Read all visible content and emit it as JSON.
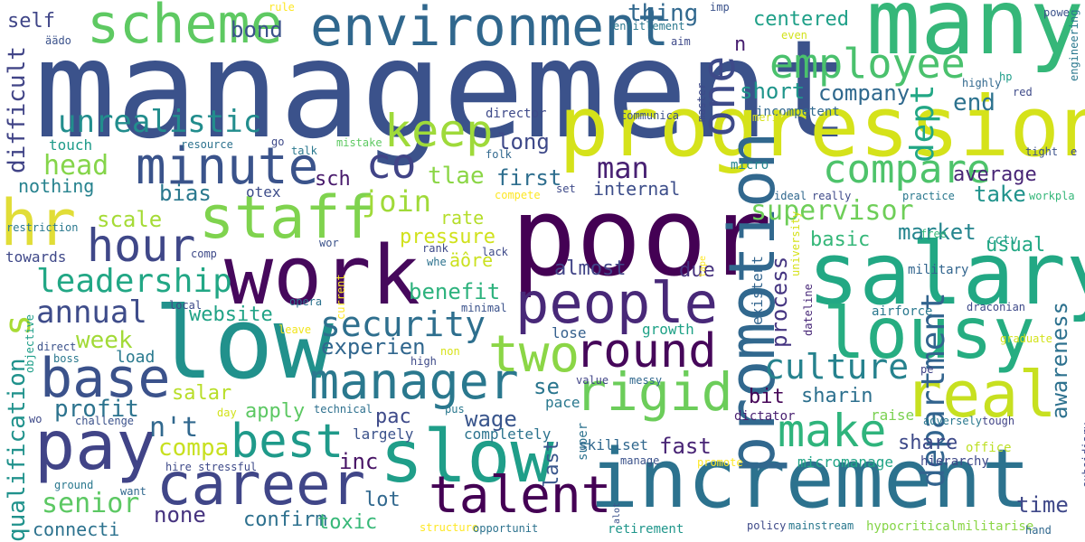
{
  "words": [
    {
      "text": "management",
      "color": "#3b528b",
      "vertical": false
    },
    {
      "text": "poor",
      "color": "#440154",
      "vertical": false
    },
    {
      "text": "many",
      "color": "#35b779",
      "vertical": false
    },
    {
      "text": "progression",
      "color": "#d5e21a",
      "vertical": false
    },
    {
      "text": "increment",
      "color": "#2c728e",
      "vertical": false
    },
    {
      "text": "low",
      "color": "#21918c",
      "vertical": false
    },
    {
      "text": "salary",
      "color": "#22a884",
      "vertical": false
    },
    {
      "text": "work",
      "color": "#46085c",
      "vertical": false
    },
    {
      "text": "promotion",
      "color": "#31688e",
      "vertical": true
    },
    {
      "text": "pay",
      "color": "#414487",
      "vertical": false
    },
    {
      "text": "slow",
      "color": "#1f9e89",
      "vertical": false
    },
    {
      "text": "lousy",
      "color": "#26ad81",
      "vertical": false
    },
    {
      "text": "scheme",
      "color": "#5ec962",
      "vertical": false
    },
    {
      "text": "environment",
      "color": "#30678d",
      "vertical": false
    },
    {
      "text": "career",
      "color": "#404688",
      "vertical": false
    },
    {
      "text": "people",
      "color": "#482878",
      "vertical": false
    },
    {
      "text": "real",
      "color": "#c7e020",
      "vertical": false
    },
    {
      "text": "hr",
      "color": "#e1dd37",
      "vertical": false
    },
    {
      "text": "staff",
      "color": "#7fd34e",
      "vertical": false
    },
    {
      "text": "one",
      "color": "#3e4a89",
      "vertical": true
    },
    {
      "text": "talent",
      "color": "#440154",
      "vertical": false
    },
    {
      "text": "base",
      "color": "#3b528b",
      "vertical": false
    },
    {
      "text": "rigid",
      "color": "#6ccd5a",
      "vertical": false
    },
    {
      "text": "manager",
      "color": "#2a788e",
      "vertical": false
    },
    {
      "text": "best",
      "color": "#1f9a8a",
      "vertical": false
    },
    {
      "text": "round",
      "color": "#46075a",
      "vertical": false
    },
    {
      "text": "two",
      "color": "#8bd646",
      "vertical": false
    },
    {
      "text": "minute",
      "color": "#3a538b",
      "vertical": false
    },
    {
      "text": "make",
      "color": "#2fb47c",
      "vertical": false
    },
    {
      "text": "employee",
      "color": "#4ac16d",
      "vertical": false
    },
    {
      "text": "keep",
      "color": "#9fda3a",
      "vertical": false
    },
    {
      "text": "compare",
      "color": "#4ec36b",
      "vertical": false
    },
    {
      "text": "hour",
      "color": "#3f4788",
      "vertical": false
    },
    {
      "text": "s",
      "color": "#a8db34",
      "vertical": true
    },
    {
      "text": "co",
      "color": "#414487",
      "vertical": false
    },
    {
      "text": "culture",
      "color": "#26828e",
      "vertical": false
    },
    {
      "text": "security",
      "color": "#2e6f8e",
      "vertical": false
    },
    {
      "text": "dept",
      "color": "#22a785",
      "vertical": true
    },
    {
      "text": "unrealistic",
      "color": "#228d8d",
      "vertical": false
    },
    {
      "text": "leadership",
      "color": "#22a785",
      "vertical": false
    },
    {
      "text": "annual",
      "color": "#3e4c8a",
      "vertical": false
    },
    {
      "text": "department",
      "color": "#32648e",
      "vertical": true
    },
    {
      "text": "difficult",
      "color": "#414487",
      "vertical": true
    },
    {
      "text": "qualification",
      "color": "#20928c",
      "vertical": true
    },
    {
      "text": "supervisor",
      "color": "#6ece58",
      "vertical": false
    },
    {
      "text": "process",
      "color": "#453581",
      "vertical": true
    },
    {
      "text": "awareness",
      "color": "#2d718e",
      "vertical": true
    },
    {
      "text": "head",
      "color": "#85d54a",
      "vertical": false
    },
    {
      "text": "senior",
      "color": "#5cc863",
      "vertical": false
    },
    {
      "text": "n't",
      "color": "#31688e",
      "vertical": false
    },
    {
      "text": "profit",
      "color": "#2c738e",
      "vertical": false
    },
    {
      "text": "experien",
      "color": "#31678e",
      "vertical": false
    },
    {
      "text": "join",
      "color": "#a0da39",
      "vertical": false
    },
    {
      "text": "company",
      "color": "#30698e",
      "vertical": false
    },
    {
      "text": "short",
      "color": "#1f958b",
      "vertical": false
    },
    {
      "text": "end",
      "color": "#2c728e",
      "vertical": false
    },
    {
      "text": "bond",
      "color": "#3b528b",
      "vertical": false
    },
    {
      "text": "self",
      "color": "#404688",
      "vertical": false
    },
    {
      "text": "thing",
      "color": "#31688e",
      "vertical": false
    },
    {
      "text": "centered",
      "color": "#1fa088",
      "vertical": false
    },
    {
      "text": "n",
      "color": "#481f70",
      "vertical": false
    },
    {
      "text": "man",
      "color": "#482173",
      "vertical": false
    },
    {
      "text": "long",
      "color": "#3e4989",
      "vertical": false
    },
    {
      "text": "first",
      "color": "#2e6e8e",
      "vertical": false
    },
    {
      "text": "internal",
      "color": "#3d4e8a",
      "vertical": false
    },
    {
      "text": "average",
      "color": "#482576",
      "vertical": false
    },
    {
      "text": "take",
      "color": "#20938c",
      "vertical": false
    },
    {
      "text": "market",
      "color": "#25858e",
      "vertical": false
    },
    {
      "text": "basic",
      "color": "#35b779",
      "vertical": false
    },
    {
      "text": "usual",
      "color": "#22a884",
      "vertical": false
    },
    {
      "text": "sch",
      "color": "#481a6c",
      "vertical": false
    },
    {
      "text": "tlae",
      "color": "#8bd646",
      "vertical": false
    },
    {
      "text": "rate",
      "color": "#b5de2b",
      "vertical": false
    },
    {
      "text": "pressure",
      "color": "#d0e11c",
      "vertical": false
    },
    {
      "text": "äôre",
      "color": "#cae11f",
      "vertical": false
    },
    {
      "text": "almost",
      "color": "#414487",
      "vertical": false
    },
    {
      "text": "due",
      "color": "#46327e",
      "vertical": false
    },
    {
      "text": "benefit",
      "color": "#2db27d",
      "vertical": false
    },
    {
      "text": "scale",
      "color": "#a5db36",
      "vertical": false
    },
    {
      "text": "nothing",
      "color": "#26828e",
      "vertical": false
    },
    {
      "text": "bias",
      "color": "#2a788e",
      "vertical": false
    },
    {
      "text": "website",
      "color": "#20a386",
      "vertical": false
    },
    {
      "text": "week",
      "color": "#a2da37",
      "vertical": false
    },
    {
      "text": "load",
      "color": "#29798e",
      "vertical": false
    },
    {
      "text": "salar",
      "color": "#b8de29",
      "vertical": false
    },
    {
      "text": "apply",
      "color": "#5cc863",
      "vertical": false
    },
    {
      "text": "pac",
      "color": "#3e4a89",
      "vertical": false
    },
    {
      "text": "wage",
      "color": "#39558c",
      "vertical": false
    },
    {
      "text": "se",
      "color": "#2a768e",
      "vertical": false
    },
    {
      "text": "inc",
      "color": "#471365",
      "vertical": false
    },
    {
      "text": "fast",
      "color": "#482475",
      "vertical": false
    },
    {
      "text": "sharin",
      "color": "#2d708e",
      "vertical": false
    },
    {
      "text": "share",
      "color": "#3e4a89",
      "vertical": false
    },
    {
      "text": "bit",
      "color": "#450457",
      "vertical": false
    },
    {
      "text": "time",
      "color": "#3f4889",
      "vertical": false
    },
    {
      "text": "compa",
      "color": "#c8e020",
      "vertical": false
    },
    {
      "text": "lot",
      "color": "#31688e",
      "vertical": false
    },
    {
      "text": "none",
      "color": "#46337f",
      "vertical": false
    },
    {
      "text": "confirm",
      "color": "#2d708e",
      "vertical": false
    },
    {
      "text": "toxic",
      "color": "#37b878",
      "vertical": false
    },
    {
      "text": "last",
      "color": "#39568c",
      "vertical": true
    },
    {
      "text": "existent",
      "color": "#32658e",
      "vertical": true
    },
    {
      "text": "touch",
      "color": "#1e9b8a",
      "vertical": false
    },
    {
      "text": "towards",
      "color": "#3f4889",
      "vertical": false
    },
    {
      "text": "largely",
      "color": "#3b528b",
      "vertical": false
    },
    {
      "text": "completely",
      "color": "#2c738e",
      "vertical": false
    },
    {
      "text": "lose",
      "color": "#35608d",
      "vertical": false
    },
    {
      "text": "growth",
      "color": "#1fa287",
      "vertical": false
    },
    {
      "text": "director",
      "color": "#3e4a89",
      "vertical": false
    },
    {
      "text": "incompetent",
      "color": "#31688e",
      "vertical": false
    },
    {
      "text": "micro",
      "color": "#25858e",
      "vertical": false
    },
    {
      "text": "otex",
      "color": "#3d4d8a",
      "vertical": false
    },
    {
      "text": "airforce",
      "color": "#2a788e",
      "vertical": false
    },
    {
      "text": "military",
      "color": "#32658e",
      "vertical": false
    },
    {
      "text": "cctv",
      "color": "#1f9e89",
      "vertical": false
    },
    {
      "text": "raise",
      "color": "#7ad151",
      "vertical": false
    },
    {
      "text": "dictator",
      "color": "#481f70",
      "vertical": false
    },
    {
      "text": "pace",
      "color": "#2a788e",
      "vertical": false
    },
    {
      "text": "super",
      "color": "#2c728e",
      "vertical": true
    },
    {
      "text": "skillset",
      "color": "#31688e",
      "vertical": false
    },
    {
      "text": "micromanage",
      "color": "#20a486",
      "vertical": false
    },
    {
      "text": "hierarchy",
      "color": "#3e4989",
      "vertical": false
    },
    {
      "text": "retirement",
      "color": "#1f968b",
      "vertical": false
    },
    {
      "text": "manage",
      "color": "#3b528b",
      "vertical": false
    },
    {
      "text": "office",
      "color": "#bddf26",
      "vertical": false
    },
    {
      "text": "tough",
      "color": "#414487",
      "vertical": false
    },
    {
      "text": "adversely",
      "color": "#2a788e",
      "vertical": false
    },
    {
      "text": "draconian",
      "color": "#3e4a89",
      "vertical": false
    },
    {
      "text": "hypocritical",
      "color": "#86d549",
      "vertical": false
    },
    {
      "text": "militarise",
      "color": "#8bd646",
      "vertical": false
    },
    {
      "text": "mainstream",
      "color": "#2a788e",
      "vertical": false
    },
    {
      "text": "policy",
      "color": "#3e4a89",
      "vertical": false
    },
    {
      "text": "hand",
      "color": "#31688e",
      "vertical": false
    },
    {
      "text": "graduate",
      "color": "#d2e21b",
      "vertical": false
    },
    {
      "text": "dateline",
      "color": "#482878",
      "vertical": true
    },
    {
      "text": "university",
      "color": "#d5e21a",
      "vertical": true
    },
    {
      "text": "pe",
      "color": "#414487",
      "vertical": false
    },
    {
      "text": "subsidiary",
      "color": "#3e4a89",
      "vertical": true
    },
    {
      "text": "hire stressful",
      "color": "#3e4a89",
      "vertical": false
    },
    {
      "text": "challenge",
      "color": "#3b528b",
      "vertical": false
    },
    {
      "text": "technical",
      "color": "#2d708e",
      "vertical": false
    },
    {
      "text": "pus",
      "color": "#2a788e",
      "vertical": false
    },
    {
      "text": "value",
      "color": "#414487",
      "vertical": false
    },
    {
      "text": "messy",
      "color": "#31688e",
      "vertical": false
    },
    {
      "text": "high",
      "color": "#3e4a89",
      "vertical": false
    },
    {
      "text": "non",
      "color": "#d8e219",
      "vertical": false
    },
    {
      "text": "minimal",
      "color": "#3b528b",
      "vertical": false
    },
    {
      "text": "leave",
      "color": "#f1e51d",
      "vertical": false
    },
    {
      "text": "current",
      "color": "#fde725",
      "vertical": true
    },
    {
      "text": "opera",
      "color": "#2c728e",
      "vertical": false
    },
    {
      "text": "local",
      "color": "#3e4a89",
      "vertical": false
    },
    {
      "text": "direct",
      "color": "#3b528b",
      "vertical": false
    },
    {
      "text": "boss",
      "color": "#2a788e",
      "vertical": false
    },
    {
      "text": "objective",
      "color": "#1f9e89",
      "vertical": true
    },
    {
      "text": "wo",
      "color": "#3e4a89",
      "vertical": false
    },
    {
      "text": "day",
      "color": "#d2e21b",
      "vertical": false
    },
    {
      "text": "ground",
      "color": "#2a788e",
      "vertical": false
    },
    {
      "text": "want",
      "color": "#31688e",
      "vertical": false
    },
    {
      "text": "connecti",
      "color": "#2c728e",
      "vertical": false
    },
    {
      "text": "structure",
      "color": "#fde725",
      "vertical": false
    },
    {
      "text": "opportunit",
      "color": "#2c728e",
      "vertical": false
    },
    {
      "text": "alot",
      "color": "#3b528b",
      "vertical": true
    },
    {
      "text": "promote",
      "color": "#fde725",
      "vertical": false
    },
    {
      "text": "restriction",
      "color": "#2a788e",
      "vertical": false
    },
    {
      "text": "resource",
      "color": "#2c728e",
      "vertical": false
    },
    {
      "text": "go",
      "color": "#3e4a89",
      "vertical": false
    },
    {
      "text": "talk",
      "color": "#2a788e",
      "vertical": false
    },
    {
      "text": "mistake",
      "color": "#5ec962",
      "vertical": false
    },
    {
      "text": "folk",
      "color": "#31688e",
      "vertical": false
    },
    {
      "text": "compete",
      "color": "#fde725",
      "vertical": false
    },
    {
      "text": "set",
      "color": "#3e4a89",
      "vertical": false
    },
    {
      "text": "comp",
      "color": "#3e4a89",
      "vertical": false
    },
    {
      "text": "wor",
      "color": "#3b528b",
      "vertical": false
    },
    {
      "text": "rank",
      "color": "#3e4a89",
      "vertical": false
    },
    {
      "text": "whe",
      "color": "#2c728e",
      "vertical": false
    },
    {
      "text": "lack",
      "color": "#3e4a89",
      "vertical": false
    },
    {
      "text": "tape",
      "color": "#fde725",
      "vertical": true
    },
    {
      "text": "free",
      "color": "#35b779",
      "vertical": false
    },
    {
      "text": "ideal",
      "color": "#31688e",
      "vertical": false
    },
    {
      "text": "really",
      "color": "#3e4a89",
      "vertical": false
    },
    {
      "text": "practice",
      "color": "#2a788e",
      "vertical": false
    },
    {
      "text": "workpla",
      "color": "#35b779",
      "vertical": false
    },
    {
      "text": "tight",
      "color": "#3b528b",
      "vertical": false
    },
    {
      "text": "e",
      "color": "#3e4a89",
      "vertical": false
    },
    {
      "text": "communica",
      "color": "#3b528b",
      "vertical": false
    },
    {
      "text": "master",
      "color": "#3e4a89",
      "vertical": true
    },
    {
      "text": "merit",
      "color": "#d5e21a",
      "vertical": false
    },
    {
      "text": "aim",
      "color": "#3e4a89",
      "vertical": false
    },
    {
      "text": "imp",
      "color": "#3b528b",
      "vertical": false
    },
    {
      "text": "entitlement",
      "color": "#2a788e",
      "vertical": false
    },
    {
      "text": "even",
      "color": "#d2e21b",
      "vertical": false
    },
    {
      "text": "hp",
      "color": "#1f9e89",
      "vertical": false
    },
    {
      "text": "highly",
      "color": "#31688e",
      "vertical": false
    },
    {
      "text": "red",
      "color": "#3e4a89",
      "vertical": false
    },
    {
      "text": "powe",
      "color": "#3b528b",
      "vertical": false
    },
    {
      "text": "engineering",
      "color": "#2a788e",
      "vertical": true
    },
    {
      "text": "rule",
      "color": "#fde725",
      "vertical": false
    },
    {
      "text": "äädo",
      "color": "#3b528b",
      "vertical": false
    }
  ]
}
